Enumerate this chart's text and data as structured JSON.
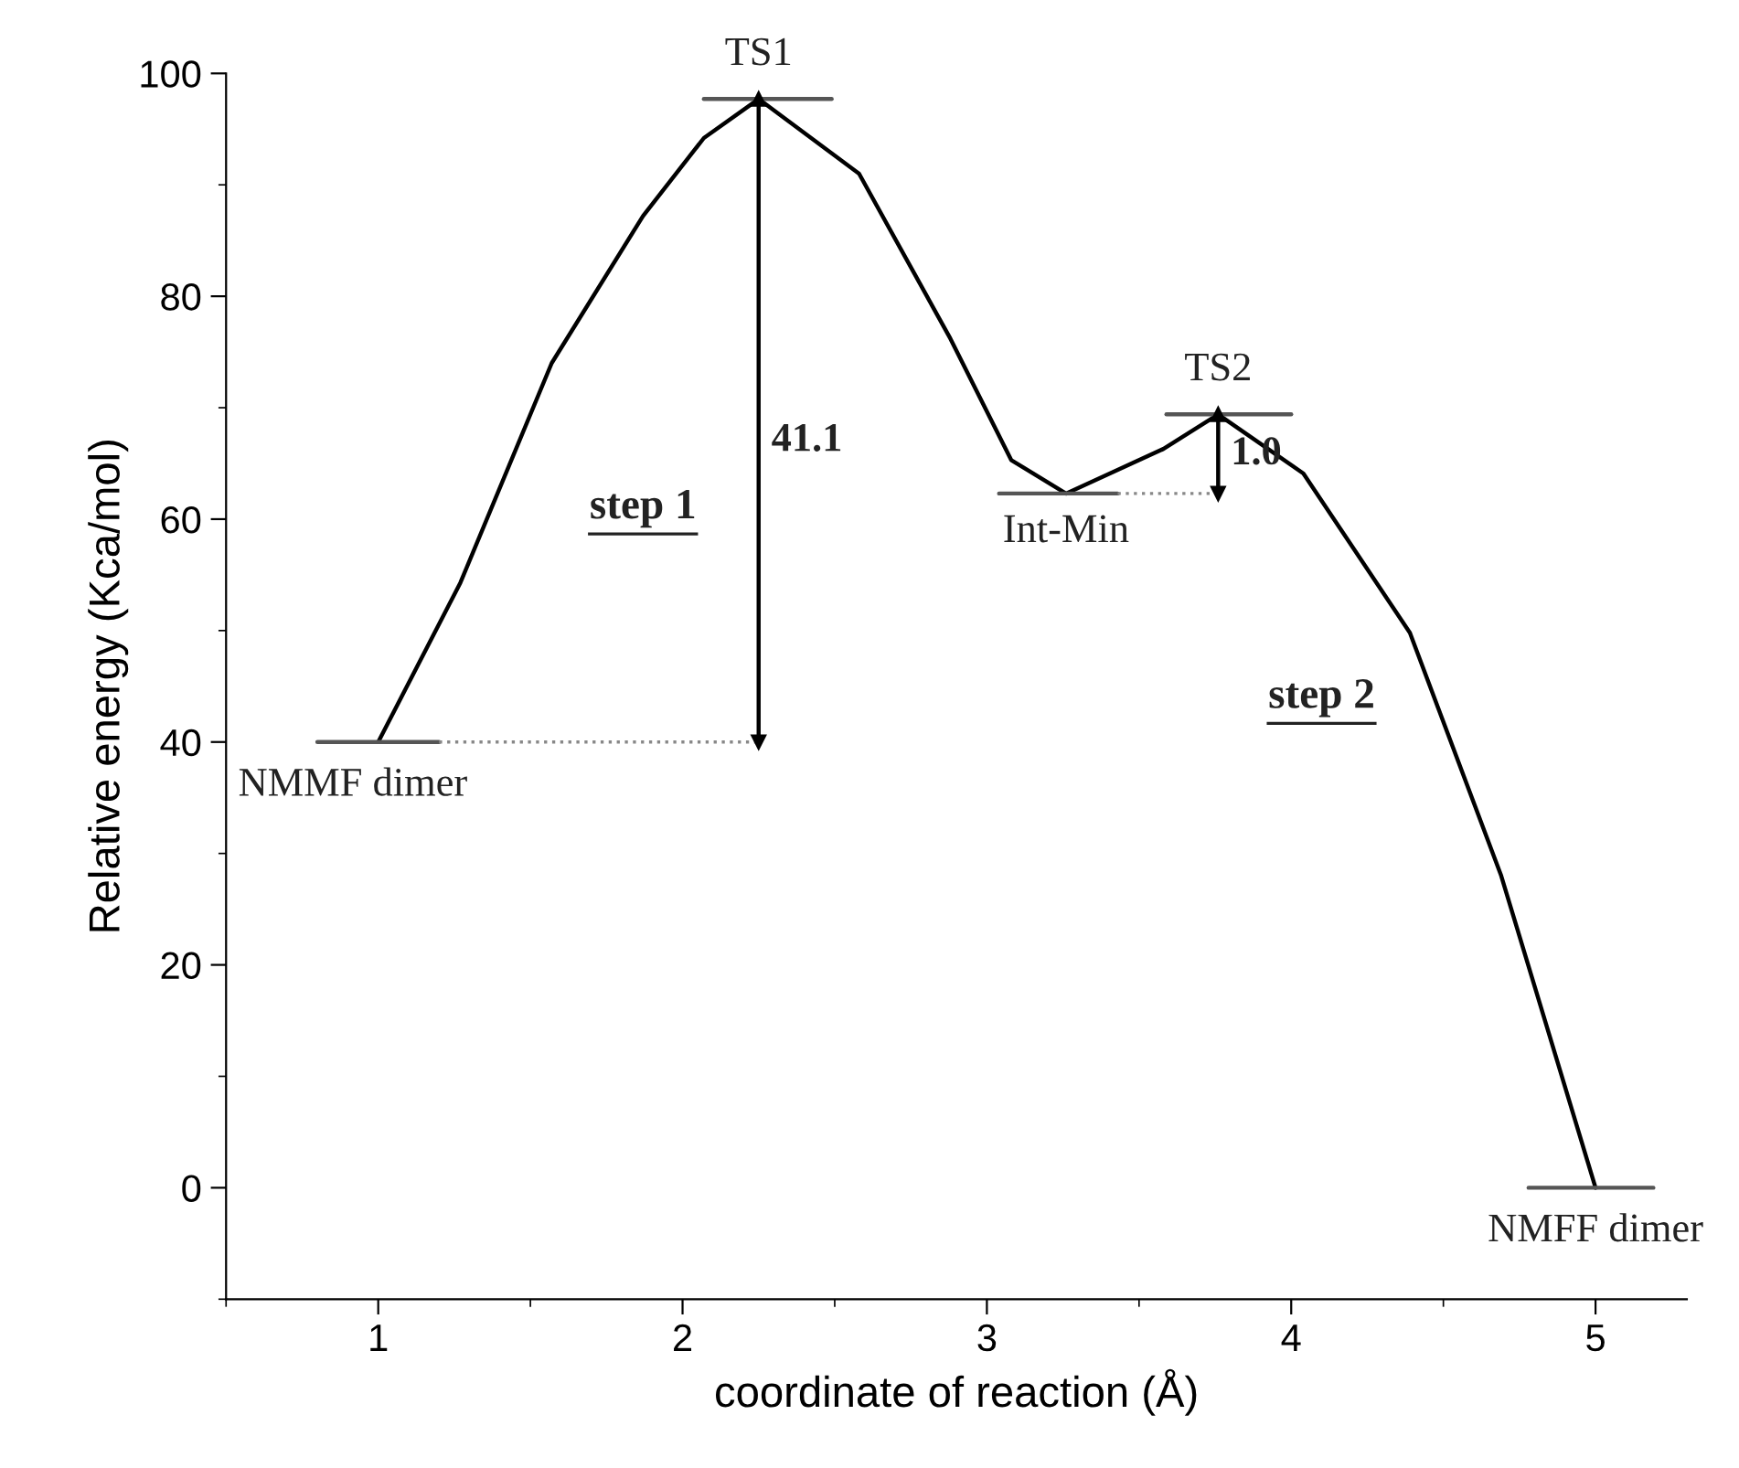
{
  "chart_data": {
    "type": "line",
    "xlabel": "coordinate of reaction (Å)",
    "ylabel": "Relative energy (Kca/mol)",
    "xlim": [
      0.5,
      5.3
    ],
    "ylim": [
      -10,
      100
    ],
    "xticks": [
      1,
      2,
      3,
      4,
      5
    ],
    "yticks": [
      0,
      20,
      40,
      60,
      80,
      100
    ],
    "grid": false,
    "legend": false,
    "series": [
      {
        "color": "#000000",
        "line_style": "solid",
        "marker": "none",
        "x": [
          1,
          1.27,
          1.57,
          1.87,
          2.07,
          2.25,
          2.58,
          2.88,
          3.08,
          3.26,
          3.58,
          3.76,
          4.04,
          4.39,
          4.69,
          5
        ],
        "values": [
          40,
          54.3,
          74,
          87.2,
          94.2,
          97.7,
          91,
          76.2,
          65.3,
          62.3,
          66.3,
          69.4,
          64.1,
          49.8,
          28,
          0
        ]
      },
      {
        "color": "#555555",
        "line_style": "solid",
        "marker": "none",
        "x": [
          0.8,
          1.2
        ],
        "values": [
          40,
          40
        ]
      },
      {
        "color": "#555555",
        "line_style": "solid",
        "marker": "none",
        "x": [
          2.07,
          2.49
        ],
        "values": [
          97.7,
          97.7
        ]
      },
      {
        "color": "#555555",
        "line_style": "solid",
        "marker": "none",
        "x": [
          3.04,
          3.43
        ],
        "values": [
          62.3,
          62.3
        ]
      },
      {
        "color": "#555555",
        "line_style": "solid",
        "marker": "none",
        "x": [
          3.59,
          4.0
        ],
        "values": [
          69.4,
          69.4
        ]
      },
      {
        "color": "#555555",
        "line_style": "solid",
        "marker": "none",
        "x": [
          4.78,
          5.19
        ],
        "values": [
          0,
          0
        ]
      },
      {
        "color": "#888888",
        "line_style": "dotted",
        "marker": "none",
        "x": [
          1.2,
          2.25
        ],
        "values": [
          40,
          40
        ]
      },
      {
        "color": "#888888",
        "line_style": "dotted",
        "marker": "none",
        "x": [
          3.43,
          3.76
        ],
        "values": [
          62.3,
          62.3
        ]
      },
      {
        "color": "#000000",
        "line_style": "solid",
        "marker": "triangle",
        "x": [
          2.25,
          2.25
        ],
        "values": [
          40,
          97.7
        ]
      },
      {
        "color": "#000000",
        "line_style": "solid",
        "marker": "triangle",
        "x": [
          3.76,
          3.76
        ],
        "values": [
          62.3,
          69.4
        ]
      }
    ],
    "annotations": [
      {
        "text": "TS1",
        "x": 2.25,
        "y": 97.7
      },
      {
        "text": "TS2",
        "x": 3.76,
        "y": 69.4
      },
      {
        "text": "Int-Min",
        "x": 3.26,
        "y": 62.3
      },
      {
        "text": "NMMF dimer",
        "x": 1,
        "y": 40
      },
      {
        "text": "NMFF dimer",
        "x": 5,
        "y": 0
      },
      {
        "text": "41.1",
        "x": 2.25,
        "y": 67
      },
      {
        "text": "1.0",
        "x": 3.76,
        "y": 65.8
      },
      "step 1",
      "step 2"
    ]
  }
}
